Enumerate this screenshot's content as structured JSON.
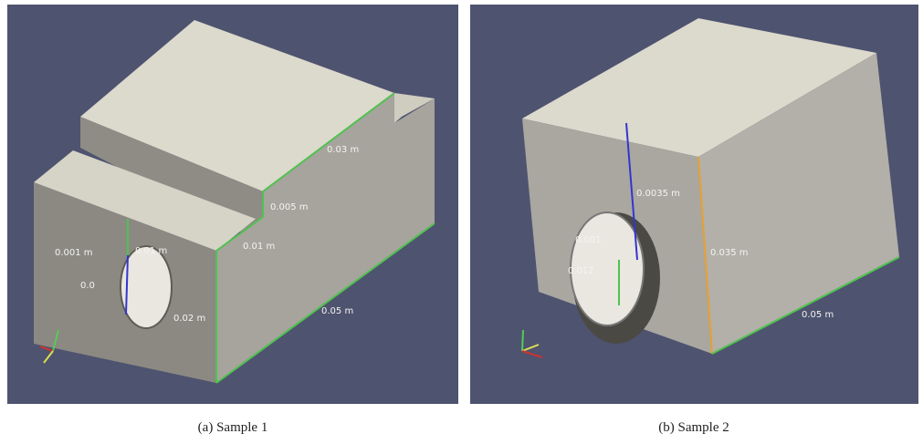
{
  "panels": [
    {
      "labels": [
        "0.03 m",
        "0.005 m",
        "0.01 m",
        "0.001 m",
        "0.01 m",
        "0.0",
        "0.02 m",
        "0.05 m"
      ],
      "caption": "(a)  Sample 1"
    },
    {
      "labels": [
        "0.0035 m",
        "0.001",
        "0.012",
        "0.035 m",
        "0.05 m"
      ],
      "caption": "(b)  Sample 2"
    }
  ]
}
